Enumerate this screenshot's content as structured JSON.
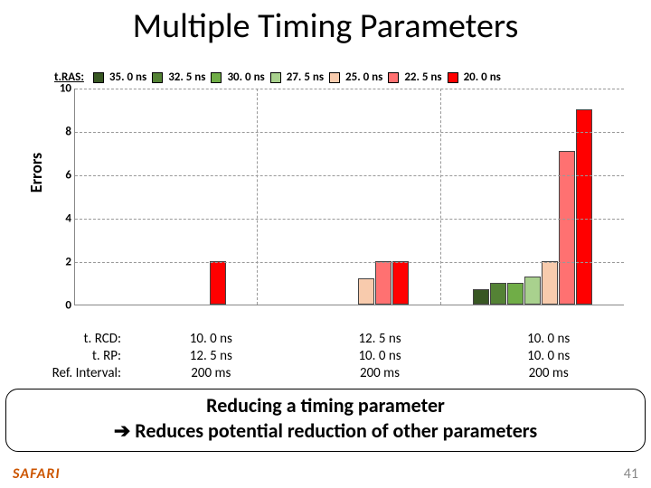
{
  "title": "Multiple Timing Parameters",
  "yaxis": {
    "label": "Errors",
    "min": 0,
    "max": 10,
    "ticks": [
      0,
      2,
      4,
      6,
      8,
      10
    ]
  },
  "legend": {
    "prefix": "t.RAS:",
    "items": [
      {
        "label": "35. 0 ns",
        "color": "#385723"
      },
      {
        "label": "32. 5 ns",
        "color": "#548235"
      },
      {
        "label": "30. 0 ns",
        "color": "#70ad47"
      },
      {
        "label": "27. 5 ns",
        "color": "#a9d18e"
      },
      {
        "label": "25. 0 ns",
        "color": "#f8cbad"
      },
      {
        "label": "22. 5 ns",
        "color": "#ff7171"
      },
      {
        "label": "20. 0 ns",
        "color": "#ff0000"
      }
    ]
  },
  "groups": [
    {
      "values": [
        0,
        0,
        0,
        0,
        0,
        0,
        2.0
      ]
    },
    {
      "values": [
        0,
        0,
        0,
        0,
        1.2,
        2.0,
        2.0
      ]
    },
    {
      "values": [
        0.7,
        1.0,
        1.0,
        1.3,
        2.0,
        7.1,
        9.0
      ]
    }
  ],
  "conditions": {
    "labels": [
      "t. RCD:",
      "t. RP:",
      "Ref. Interval:"
    ],
    "columns": [
      [
        "10. 0 ns",
        "12. 5 ns",
        "200 ms"
      ],
      [
        "12. 5 ns",
        "10. 0 ns",
        "200 ms"
      ],
      [
        "10. 0 ns",
        "10. 0 ns",
        "200 ms"
      ]
    ]
  },
  "callout": {
    "line1": "Reducing a timing parameter",
    "line2": "➔ Reduces potential reduction of other parameters"
  },
  "footer": {
    "logo": "SAFARI",
    "page": "41"
  }
}
